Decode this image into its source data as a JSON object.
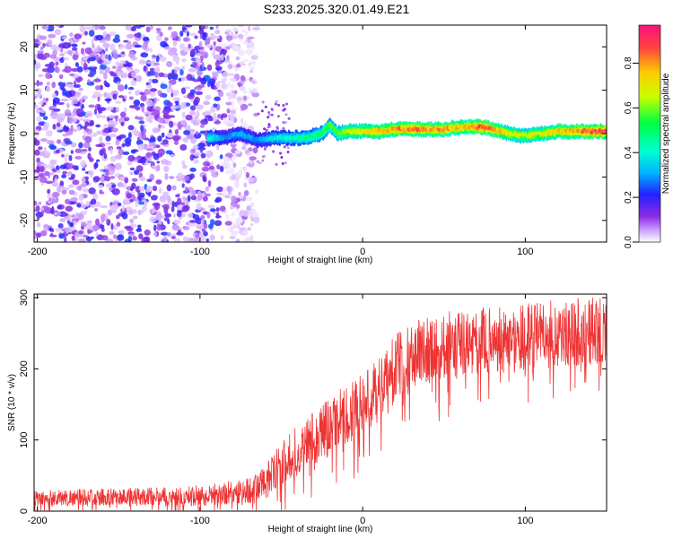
{
  "title": "S233.2025.320.01.49.E21",
  "chart_data": [
    {
      "type": "heatmap",
      "xlabel": "Height of straight line (km)",
      "ylabel": "Frequency (Hz)",
      "xlim": [
        -202,
        150
      ],
      "ylim": [
        -25,
        25
      ],
      "xticks": [
        -200,
        -100,
        0,
        100
      ],
      "yticks": [
        -20,
        -10,
        0,
        10,
        20
      ],
      "colorbar": {
        "label": "Normalized spectral amplitude",
        "range": [
          0,
          0.97
        ],
        "ticks": [
          0.0,
          0.2,
          0.4,
          0.6,
          0.8
        ],
        "tick_labels": [
          "0.0",
          "0.2",
          "0.4",
          "0.6",
          "0.8"
        ],
        "colormap": [
          "#ffffff",
          "#d0a8ff",
          "#8a2be2",
          "#2222ff",
          "#00b4ff",
          "#00ffd0",
          "#00ff40",
          "#c8ff00",
          "#ffcc00",
          "#ff4040",
          "#ff1080"
        ]
      },
      "ridge": {
        "x": [
          -95,
          -85,
          -75,
          -65,
          -55,
          -45,
          -35,
          -25,
          -20,
          -15,
          -10,
          0,
          10,
          20,
          30,
          40,
          50,
          60,
          70,
          75,
          80,
          90,
          100,
          110,
          120,
          130,
          140,
          150
        ],
        "freq": [
          -1.0,
          -1.0,
          0.0,
          -1.5,
          -1.0,
          -1.0,
          -1.0,
          0.0,
          2.0,
          0.0,
          0.5,
          0.5,
          0.5,
          1.0,
          1.0,
          1.0,
          1.0,
          1.5,
          1.5,
          1.5,
          1.0,
          0.0,
          -0.5,
          0.0,
          0.5,
          0.5,
          0.5,
          0.5
        ],
        "amplitude": [
          0.45,
          0.3,
          0.35,
          0.3,
          0.4,
          0.45,
          0.5,
          0.55,
          0.6,
          0.6,
          0.7,
          0.75,
          0.8,
          0.85,
          0.9,
          0.85,
          0.85,
          0.8,
          0.9,
          0.95,
          0.85,
          0.75,
          0.7,
          0.75,
          0.8,
          0.85,
          0.9,
          0.95
        ]
      },
      "noise_region": {
        "x_range": [
          -202,
          -65
        ],
        "amplitude_range": [
          0.03,
          0.25
        ]
      }
    },
    {
      "type": "line",
      "xlabel": "Height of straight line (km)",
      "ylabel": "SNR (10 * v/v)",
      "xlim": [
        -202,
        150
      ],
      "ylim": [
        0,
        305
      ],
      "xticks": [
        -200,
        -100,
        0,
        100
      ],
      "yticks": [
        0,
        100,
        200,
        300
      ],
      "series": [
        {
          "name": "SNR",
          "color": "#ee3333",
          "trend_x": [
            -202,
            -150,
            -100,
            -70,
            -60,
            -50,
            -40,
            -30,
            -20,
            -10,
            0,
            10,
            20,
            30,
            40,
            60,
            80,
            100,
            120,
            150
          ],
          "trend_y": [
            18,
            20,
            22,
            28,
            40,
            65,
            85,
            105,
            120,
            135,
            150,
            170,
            200,
            220,
            230,
            235,
            240,
            245,
            250,
            255
          ],
          "noise_spread_y": [
            15,
            15,
            18,
            25,
            30,
            40,
            45,
            50,
            50,
            55,
            55,
            55,
            60,
            60,
            60,
            60,
            60,
            60,
            60,
            60
          ]
        }
      ]
    }
  ]
}
